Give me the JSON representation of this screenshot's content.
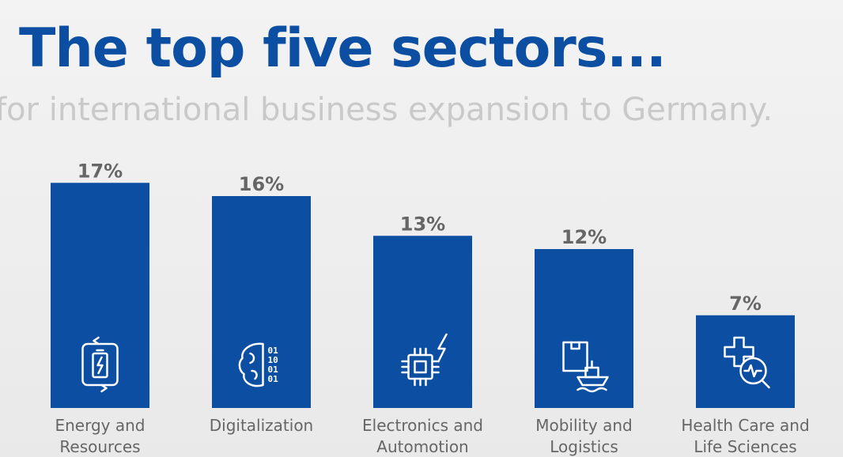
{
  "title": "The top five sectors...",
  "subtitle": "for international business expansion to Germany.",
  "chart_data": {
    "type": "bar",
    "categories": [
      [
        "Energy and",
        "Resources"
      ],
      [
        "Digitalization"
      ],
      [
        "Electronics and",
        "Automotion"
      ],
      [
        "Mobility and",
        "Logistics"
      ],
      [
        "Health Care and",
        "Life Sciences"
      ]
    ],
    "values": [
      17,
      16,
      13,
      12,
      7
    ],
    "value_labels": [
      "17%",
      "16%",
      "13%",
      "12%",
      "7%"
    ],
    "icons": [
      "battery-cycle-icon",
      "brain-binary-icon",
      "chip-lightning-icon",
      "box-ship-icon",
      "health-search-icon"
    ],
    "bar_color": "#0b4ea2",
    "grid": false
  }
}
